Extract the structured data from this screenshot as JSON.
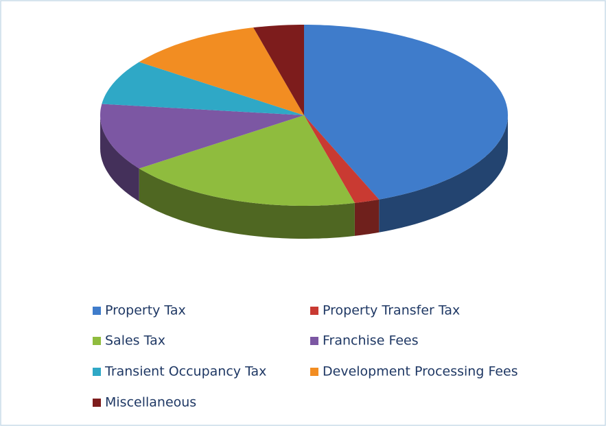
{
  "chart_data": {
    "type": "pie3d",
    "categories": [
      "Property Tax",
      "Property Transfer Tax",
      "Sales Tax",
      "Franchise Fees",
      "Transient Occupancy Tax",
      "Development Processing Fees",
      "Miscellaneous"
    ],
    "values": [
      44,
      2,
      19,
      12,
      8,
      11,
      4
    ],
    "colors": [
      "#3f7ccb",
      "#c93a32",
      "#8fbc3e",
      "#7c57a3",
      "#2fa8c6",
      "#f28d22",
      "#7d1c1c"
    ],
    "legend": "bottom"
  }
}
